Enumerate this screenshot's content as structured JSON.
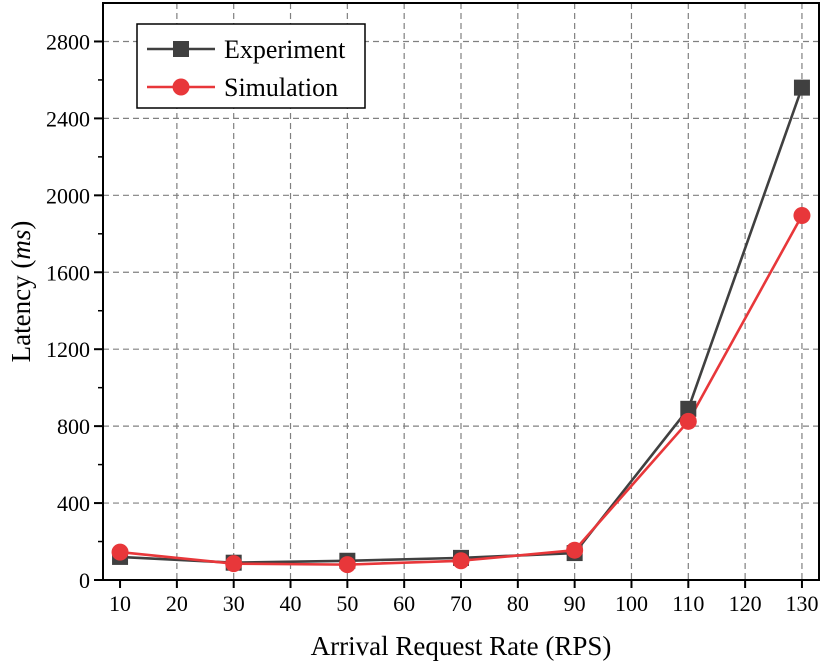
{
  "chart_data": {
    "type": "line",
    "title": "",
    "xlabel": "Arrival Request Rate (RPS)",
    "ylabel_main": "Latency (",
    "ylabel_unit": "ms",
    "ylabel_close": ")",
    "xlim": [
      7,
      133
    ],
    "ylim": [
      0,
      3000
    ],
    "xticks": [
      10,
      20,
      30,
      40,
      50,
      60,
      70,
      80,
      90,
      100,
      110,
      120,
      130
    ],
    "yticks": [
      0,
      400,
      800,
      1200,
      1600,
      2000,
      2400,
      2800
    ],
    "grid": true,
    "legend_position": "top-left",
    "series": [
      {
        "name": "Experiment",
        "marker": "square",
        "color": "#404040",
        "x": [
          10,
          30,
          50,
          70,
          90,
          110,
          130
        ],
        "values": [
          120,
          90,
          100,
          115,
          140,
          890,
          2560
        ]
      },
      {
        "name": "Simulation",
        "marker": "circle",
        "color": "#e8373a",
        "x": [
          10,
          30,
          50,
          70,
          90,
          110,
          130
        ],
        "values": [
          145,
          85,
          80,
          100,
          155,
          825,
          1895
        ]
      }
    ]
  }
}
